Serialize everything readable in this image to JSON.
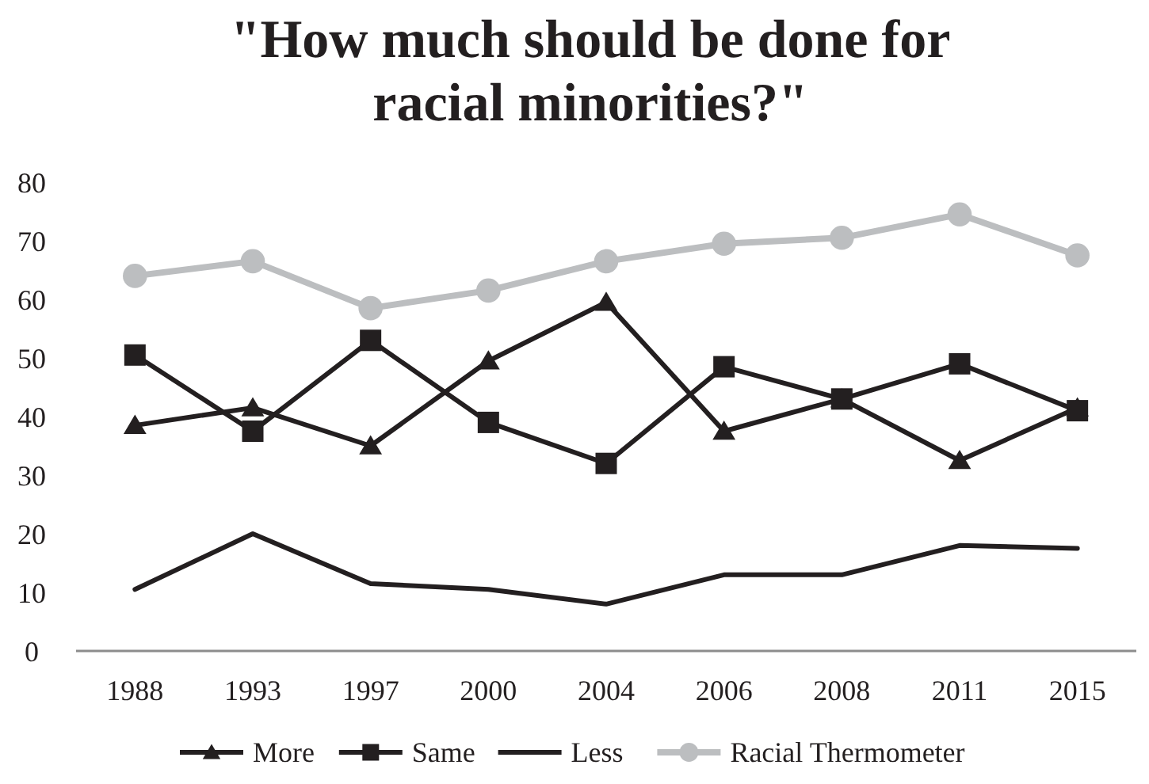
{
  "chart_data": {
    "type": "line",
    "title": "\"How much should be done for racial minorities?\"",
    "categories": [
      "1988",
      "1993",
      "1997",
      "2000",
      "2004",
      "2006",
      "2008",
      "2011",
      "2015"
    ],
    "series": [
      {
        "name": "More",
        "color": "#231f20",
        "marker": "triangle",
        "values": [
          38.5,
          41.5,
          35,
          49.5,
          59.5,
          37.5,
          43,
          32.5,
          41.5
        ]
      },
      {
        "name": "Same",
        "color": "#231f20",
        "marker": "square",
        "values": [
          50.5,
          37.5,
          53,
          39,
          32,
          48.5,
          43,
          49,
          41
        ]
      },
      {
        "name": "Less",
        "color": "#231f20",
        "marker": "none",
        "values": [
          10.5,
          20,
          11.5,
          10.5,
          8,
          13,
          13,
          18,
          17.5
        ]
      },
      {
        "name": "Racial Thermometer",
        "color": "#bcbec0",
        "marker": "circle",
        "values": [
          64,
          66.5,
          58.5,
          61.5,
          66.5,
          69.5,
          70.5,
          74.5,
          67.5
        ]
      }
    ],
    "ylim": [
      0,
      80
    ],
    "yticks": [
      0,
      10,
      20,
      30,
      40,
      50,
      60,
      70,
      80
    ],
    "grid": false,
    "legend": "bottom"
  }
}
